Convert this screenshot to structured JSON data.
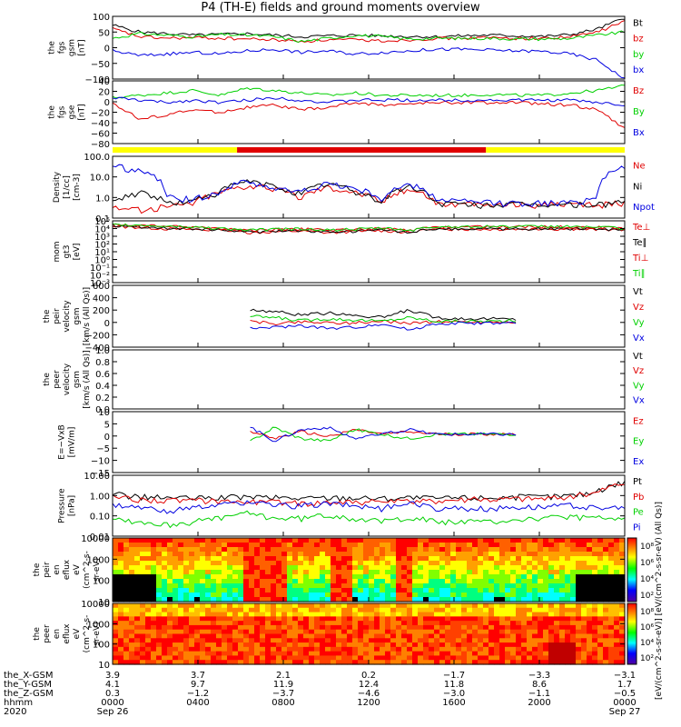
{
  "title": "P4 (TH-E) fields and ground moments overview",
  "colors": {
    "black": "#000000",
    "red": "#e00000",
    "green": "#00d000",
    "blue": "#0000e0",
    "yellow": "#ffff00",
    "bar_red": "#e00000"
  },
  "chart_data": [
    {
      "type": "line",
      "panel": "fgs_gsm",
      "ylabel": [
        "the",
        "fgs",
        "gsm",
        "[nT]"
      ],
      "yticks": [
        "100",
        "50",
        "0",
        "−50",
        "−100"
      ],
      "ylim": [
        -100,
        100
      ],
      "series": [
        {
          "name": "Bt",
          "color": "#000000",
          "values": [
            72,
            50,
            45,
            40,
            42,
            45,
            40,
            35,
            38,
            40,
            38,
            36,
            35,
            38,
            40,
            38,
            36,
            42,
            60,
            95
          ]
        },
        {
          "name": "bz",
          "color": "#e00000",
          "values": [
            60,
            35,
            30,
            32,
            30,
            28,
            25,
            20,
            25,
            25,
            22,
            25,
            30,
            30,
            32,
            30,
            30,
            35,
            50,
            85
          ]
        },
        {
          "name": "by",
          "color": "#00d000",
          "values": [
            30,
            45,
            40,
            35,
            42,
            40,
            35,
            20,
            30,
            40,
            35,
            28,
            30,
            30,
            30,
            28,
            28,
            30,
            40,
            50
          ]
        },
        {
          "name": "bx",
          "color": "#0000e0",
          "values": [
            -10,
            -25,
            -20,
            -15,
            -20,
            -10,
            -5,
            -15,
            -10,
            -20,
            -15,
            -10,
            -5,
            -5,
            -8,
            -10,
            -12,
            -20,
            -40,
            -100
          ]
        }
      ]
    },
    {
      "type": "line",
      "panel": "fgs_gse",
      "ylabel": [
        "the",
        "fgs",
        "gse",
        "[nT]"
      ],
      "yticks": [
        "40",
        "20",
        "0",
        "−20",
        "−40",
        "−60",
        "−80"
      ],
      "ylim": [
        -90,
        40
      ],
      "series": [
        {
          "name": "Bz",
          "color": "#e00000",
          "values": [
            -5,
            -40,
            -30,
            -20,
            -25,
            -15,
            -10,
            -20,
            -15,
            -5,
            -10,
            -8,
            -5,
            -5,
            -5,
            -5,
            -8,
            -10,
            -20,
            -60
          ]
        },
        {
          "name": "By",
          "color": "#00d000",
          "values": [
            5,
            10,
            15,
            20,
            10,
            25,
            20,
            15,
            10,
            15,
            10,
            10,
            10,
            10,
            12,
            10,
            10,
            15,
            20,
            30
          ]
        },
        {
          "name": "Bx",
          "color": "#0000e0",
          "values": [
            5,
            0,
            -5,
            0,
            -5,
            0,
            5,
            0,
            -5,
            0,
            0,
            0,
            0,
            0,
            0,
            0,
            0,
            0,
            -5,
            -10
          ]
        }
      ]
    },
    {
      "type": "bar",
      "panel": "mode_bar",
      "segments": [
        {
          "name": "slow",
          "color": "#ffff00",
          "from": "0000",
          "to": "0550"
        },
        {
          "name": "fast",
          "color": "#e00000",
          "from": "0550",
          "to": "1730"
        },
        {
          "name": "slow",
          "color": "#ffff00",
          "from": "1730",
          "to": "2400"
        }
      ]
    },
    {
      "type": "line",
      "panel": "density",
      "scale": "log",
      "ylabel": [
        "Density",
        "[1/cc]",
        "[cm-3]"
      ],
      "yticks": [
        "100.0",
        "10.0",
        "1.0",
        "0.1"
      ],
      "ylim": [
        0.07,
        200
      ],
      "series": [
        {
          "name": "Ne",
          "color": "#e00000",
          "values": [
            0.3,
            0.2,
            0.3,
            0.5,
            2,
            5,
            3,
            1,
            4,
            2,
            0.5,
            3,
            0.5,
            0.4,
            0.4,
            0.4,
            0.4,
            0.4,
            0.4,
            0.5
          ]
        },
        {
          "name": "Ni",
          "color": "#000000",
          "values": [
            0.5,
            2,
            0.5,
            0.6,
            2,
            8,
            4,
            1.5,
            6,
            2,
            0.5,
            4,
            0.5,
            0.4,
            0.4,
            0.4,
            0.4,
            0.4,
            0.4,
            0.6
          ]
        },
        {
          "name": "Npot",
          "color": "#0000e0",
          "values": [
            60,
            30,
            1,
            0.8,
            2,
            8,
            3,
            2,
            6,
            3,
            0.8,
            5,
            0.8,
            0.6,
            0.5,
            0.5,
            0.5,
            0.5,
            1,
            60
          ]
        }
      ]
    },
    {
      "type": "line",
      "panel": "temperature",
      "scale": "log",
      "ylabel": [
        "mom",
        "gt3",
        "[eV]"
      ],
      "yticks": [
        "10⁵",
        "10⁴",
        "10³",
        "10²",
        "10¹",
        "10⁰",
        "10⁻¹",
        "10⁻²",
        "10⁻³"
      ],
      "ylim": [
        0.001,
        100000
      ],
      "series": [
        {
          "name": "Te⊥",
          "color": "#e00000",
          "values": [
            20000,
            15000,
            10000,
            8000,
            6000,
            3000,
            4000,
            5000,
            3000,
            4000,
            6000,
            3000,
            8000,
            9000,
            9000,
            9000,
            9000,
            9000,
            8000,
            6000
          ]
        },
        {
          "name": "Te∥",
          "color": "#000000",
          "values": [
            25000,
            18000,
            12000,
            9000,
            7000,
            3500,
            4500,
            5500,
            3500,
            4500,
            7000,
            3500,
            9000,
            10000,
            10000,
            10000,
            10000,
            10000,
            9000,
            7000
          ]
        },
        {
          "name": "Ti⊥",
          "color": "#e00000",
          "values": [
            30000,
            25000,
            20000,
            15000,
            10000,
            6000,
            8000,
            9000,
            6000,
            8000,
            10000,
            5000,
            15000,
            18000,
            18000,
            18000,
            18000,
            18000,
            15000,
            10000
          ]
        },
        {
          "name": "Ti∥",
          "color": "#00d000",
          "values": [
            30000,
            26000,
            21000,
            16000,
            11000,
            6500,
            8500,
            9500,
            6500,
            8500,
            11000,
            5500,
            16000,
            19000,
            19000,
            19000,
            19000,
            19000,
            16000,
            11000
          ]
        }
      ]
    },
    {
      "type": "line",
      "panel": "peir_velocity",
      "ylabel": [
        "the",
        "peir",
        "velocity",
        "gsm",
        "[km/s (All Qs)]"
      ],
      "yticks": [
        "600",
        "400",
        "200",
        "0",
        "−200",
        "−400"
      ],
      "ylim": [
        -400,
        600
      ],
      "series": [
        {
          "name": "Vt",
          "color": "#000000",
          "values": [
            null,
            null,
            null,
            null,
            null,
            200,
            180,
            120,
            150,
            120,
            80,
            200,
            80,
            60,
            60,
            50,
            null,
            null,
            null,
            null
          ]
        },
        {
          "name": "Vz",
          "color": "#e00000",
          "values": [
            null,
            null,
            null,
            null,
            null,
            20,
            -20,
            10,
            0,
            -10,
            20,
            -10,
            10,
            10,
            10,
            10,
            null,
            null,
            null,
            null
          ]
        },
        {
          "name": "Vy",
          "color": "#00d000",
          "values": [
            null,
            null,
            null,
            null,
            null,
            100,
            80,
            30,
            60,
            40,
            20,
            80,
            20,
            20,
            20,
            20,
            null,
            null,
            null,
            null
          ]
        },
        {
          "name": "Vx",
          "color": "#0000e0",
          "values": [
            null,
            null,
            null,
            null,
            null,
            -100,
            -80,
            -50,
            -100,
            -80,
            -20,
            -120,
            -20,
            -10,
            -10,
            -10,
            null,
            null,
            null,
            null
          ]
        }
      ]
    },
    {
      "type": "line",
      "panel": "peer_velocity",
      "ylabel": [
        "the",
        "peer",
        "velocity",
        "gsm",
        "[km/s (All Qs)]"
      ],
      "yticks": [
        "1.0",
        "0.8",
        "0.6",
        "0.4",
        "0.2",
        "0.0"
      ],
      "ylim": [
        0,
        1
      ],
      "series": [
        {
          "name": "Vt",
          "color": "#000000",
          "values": []
        },
        {
          "name": "Vz",
          "color": "#e00000",
          "values": []
        },
        {
          "name": "Vy",
          "color": "#00d000",
          "values": []
        },
        {
          "name": "Vx",
          "color": "#0000e0",
          "values": []
        }
      ]
    },
    {
      "type": "line",
      "panel": "efield",
      "ylabel": [
        "E=−VxB",
        "[mV/m]"
      ],
      "yticks": [
        "10",
        "5",
        "0",
        "−5",
        "−10",
        "−15"
      ],
      "ylim": [
        -17,
        10
      ],
      "series": [
        {
          "name": "Ez",
          "color": "#e00000",
          "values": [
            null,
            null,
            null,
            null,
            null,
            2,
            -2,
            1,
            -1,
            2,
            0,
            1,
            0,
            0,
            0,
            0,
            null,
            null,
            null,
            null
          ]
        },
        {
          "name": "Ey",
          "color": "#00d000",
          "values": [
            null,
            null,
            null,
            null,
            null,
            -4,
            3,
            -2,
            -3,
            2,
            0,
            -2,
            0,
            0,
            0,
            0,
            null,
            null,
            null,
            null
          ]
        },
        {
          "name": "Ex",
          "color": "#0000e0",
          "values": [
            null,
            null,
            null,
            null,
            null,
            4,
            -3,
            2,
            3,
            -2,
            0,
            2,
            0,
            0,
            0,
            0,
            null,
            null,
            null,
            null
          ]
        }
      ]
    },
    {
      "type": "line",
      "panel": "pressure",
      "scale": "log",
      "ylabel": [
        "Pressure",
        "[nPa]"
      ],
      "yticks": [
        "10.00",
        "1.00",
        "0.10",
        "0.01"
      ],
      "ylim": [
        0.004,
        20
      ],
      "series": [
        {
          "name": "Pt",
          "color": "#000000",
          "values": [
            1.5,
            1.0,
            0.9,
            0.8,
            0.9,
            1.0,
            0.9,
            0.8,
            0.9,
            0.9,
            0.8,
            0.9,
            0.8,
            0.9,
            0.9,
            1.0,
            1.0,
            1.2,
            2.0,
            8.0
          ]
        },
        {
          "name": "Pb",
          "color": "#e00000",
          "values": [
            1.0,
            0.7,
            0.6,
            0.6,
            0.6,
            0.5,
            0.5,
            0.4,
            0.5,
            0.5,
            0.5,
            0.5,
            0.6,
            0.7,
            0.7,
            0.8,
            0.8,
            1.0,
            1.8,
            7.0
          ]
        },
        {
          "name": "Pe",
          "color": "#00d000",
          "values": [
            0.05,
            0.03,
            0.02,
            0.03,
            0.05,
            0.1,
            0.05,
            0.05,
            0.08,
            0.05,
            0.03,
            0.06,
            0.03,
            0.03,
            0.03,
            0.04,
            0.05,
            0.06,
            0.05,
            0.04
          ]
        },
        {
          "name": "Pi",
          "color": "#0000e0",
          "values": [
            0.3,
            0.2,
            0.15,
            0.2,
            0.3,
            0.5,
            0.3,
            0.3,
            0.4,
            0.3,
            0.2,
            0.4,
            0.2,
            0.2,
            0.2,
            0.25,
            0.25,
            0.3,
            0.2,
            0.2
          ]
        }
      ]
    },
    {
      "type": "heatmap",
      "panel": "peir_spectrogram",
      "ylabel": [
        "the",
        "peir",
        "en",
        "eflux",
        "eV",
        "(cm^2-s-",
        "sr-eV)"
      ],
      "yticks": [
        "10000",
        "1000",
        "100",
        "10"
      ],
      "ylim": [
        5,
        25000
      ]
    },
    {
      "type": "heatmap",
      "panel": "peer_spectrogram",
      "ylabel": [
        "the",
        "peer",
        "en",
        "eflux",
        "eV",
        "(cm^2-s-",
        "sr-eV)"
      ],
      "yticks": [
        "10000",
        "1000",
        "100",
        "10"
      ],
      "ylim": [
        5,
        25000
      ]
    }
  ],
  "colorbar": {
    "label": "[eV/(cm^2-s-sr-eV)] [eV/(cm^2-s-sr-eV) (All Qs)]",
    "ticks_top": [
      "10⁸",
      "10⁶",
      "10⁴",
      "10²"
    ],
    "ticks_bottom": [
      "10⁸",
      "10⁶",
      "10⁴",
      "10²"
    ]
  },
  "xaxis": {
    "rows": [
      {
        "label": "the_X-GSM",
        "values": [
          "3.9",
          "3.7",
          "2.1",
          "0.2",
          "−1.7",
          "−3.3",
          "−3.1"
        ]
      },
      {
        "label": "the_Y-GSM",
        "values": [
          "4.1",
          "9.7",
          "11.9",
          "12.4",
          "11.8",
          "8.6",
          "1.7"
        ]
      },
      {
        "label": "the_Z-GSM",
        "values": [
          "0.3",
          "−1.2",
          "−3.7",
          "−4.6",
          "−3.0",
          "−1.1",
          "−0.5"
        ]
      },
      {
        "label": "hhmm",
        "values": [
          "0000",
          "0400",
          "0800",
          "1200",
          "1600",
          "2000",
          "0000"
        ]
      },
      {
        "label": "2020",
        "values": [
          "Sep 26",
          "",
          "",
          "",
          "",
          "",
          "Sep 27"
        ]
      }
    ]
  }
}
